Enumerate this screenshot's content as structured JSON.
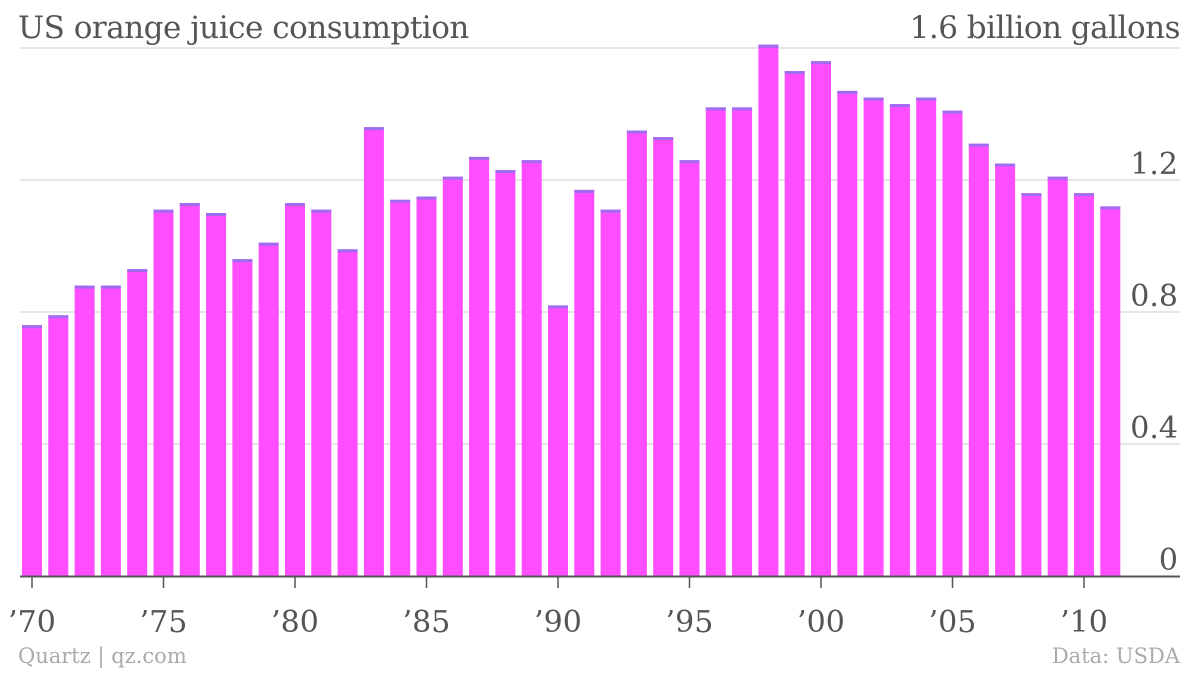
{
  "chart_data": {
    "type": "bar",
    "title": "US orange juice consumption",
    "ylabel": "",
    "xlabel": "",
    "unit_label": "1.6 billion gallons",
    "x": [
      1970,
      1971,
      1972,
      1973,
      1974,
      1975,
      1976,
      1977,
      1978,
      1979,
      1980,
      1981,
      1982,
      1983,
      1984,
      1985,
      1986,
      1987,
      1988,
      1989,
      1990,
      1991,
      1992,
      1993,
      1994,
      1995,
      1996,
      1997,
      1998,
      1999,
      2000,
      2001,
      2002,
      2003,
      2004,
      2005,
      2006,
      2007,
      2008,
      2009,
      2010,
      2011
    ],
    "values": [
      0.76,
      0.79,
      0.88,
      0.88,
      0.93,
      1.11,
      1.13,
      1.1,
      0.96,
      1.01,
      1.13,
      1.11,
      0.99,
      1.36,
      1.14,
      1.15,
      1.21,
      1.27,
      1.23,
      1.26,
      0.82,
      1.17,
      1.11,
      1.35,
      1.33,
      1.26,
      1.42,
      1.42,
      1.61,
      1.53,
      1.56,
      1.47,
      1.45,
      1.43,
      1.45,
      1.41,
      1.31,
      1.25,
      1.16,
      1.21,
      1.16,
      1.12
    ],
    "yticks": [
      "0",
      "0.4",
      "0.8",
      "1.2"
    ],
    "ylim": [
      0,
      1.6
    ],
    "xticks": [
      {
        "year": 1970,
        "label": "’70"
      },
      {
        "year": 1975,
        "label": "’75"
      },
      {
        "year": 1980,
        "label": "’80"
      },
      {
        "year": 1985,
        "label": "’85"
      },
      {
        "year": 1990,
        "label": "’90"
      },
      {
        "year": 1995,
        "label": "’95"
      },
      {
        "year": 2000,
        "label": "’00"
      },
      {
        "year": 2005,
        "label": "’05"
      },
      {
        "year": 2010,
        "label": "’10"
      }
    ],
    "grid": true,
    "bar_color": "#ff4dff",
    "bar_top_color": "#9f6cf0",
    "grid_color": "#dddddd",
    "axis_color": "#555555"
  },
  "footer": {
    "source_left": "Quartz | qz.com",
    "source_right": "Data: USDA"
  }
}
